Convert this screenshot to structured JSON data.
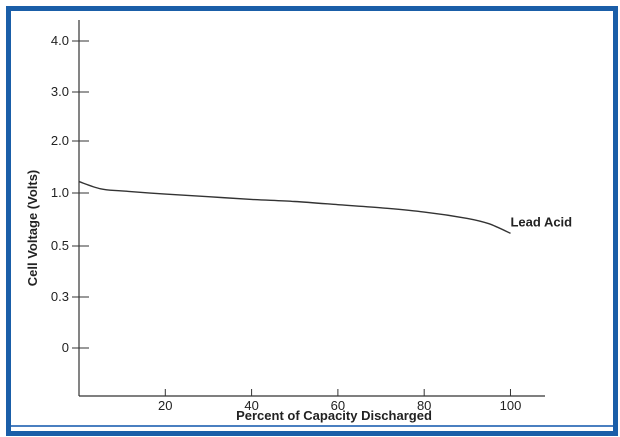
{
  "chart_data": {
    "type": "line",
    "title": "",
    "xlabel": "Percent of Capacity Discharged",
    "ylabel": "Cell Voltage (Volts)",
    "x_ticks": [
      "20",
      "40",
      "60",
      "80",
      "100"
    ],
    "x_tick_values": [
      20,
      40,
      60,
      80,
      100
    ],
    "y_ticks": [
      "4.0",
      "3.0",
      "2.0",
      "1.0",
      "0.5",
      "0.3",
      "0"
    ],
    "xlim": [
      0,
      108
    ],
    "grid": false,
    "series": [
      {
        "name": "Lead Acid",
        "color": "#333333",
        "points": [
          [
            0,
            1.22
          ],
          [
            5,
            1.08
          ],
          [
            10,
            1.04
          ],
          [
            20,
            0.99
          ],
          [
            30,
            0.965
          ],
          [
            40,
            0.94
          ],
          [
            50,
            0.92
          ],
          [
            60,
            0.89
          ],
          [
            70,
            0.86
          ],
          [
            80,
            0.82
          ],
          [
            90,
            0.76
          ],
          [
            95,
            0.71
          ],
          [
            100,
            0.62
          ]
        ]
      }
    ]
  }
}
